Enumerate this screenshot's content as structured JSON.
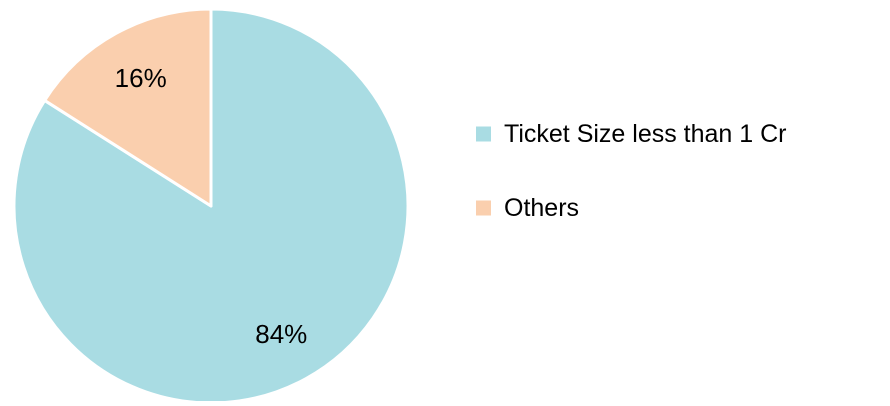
{
  "chart_data": {
    "type": "pie",
    "categories": [
      "Ticket Size less than 1 Cr",
      "Others"
    ],
    "values": [
      84,
      16
    ],
    "data_labels": [
      "84%",
      "16%"
    ],
    "colors": [
      "#A9DCE3",
      "#FACFAE"
    ],
    "slice_border_color": "#FFFFFF",
    "start_angle_deg": 0,
    "direction": "clockwise",
    "legend": {
      "position": "right",
      "entries": [
        "Ticket Size less than 1 Cr",
        "Others"
      ]
    }
  }
}
